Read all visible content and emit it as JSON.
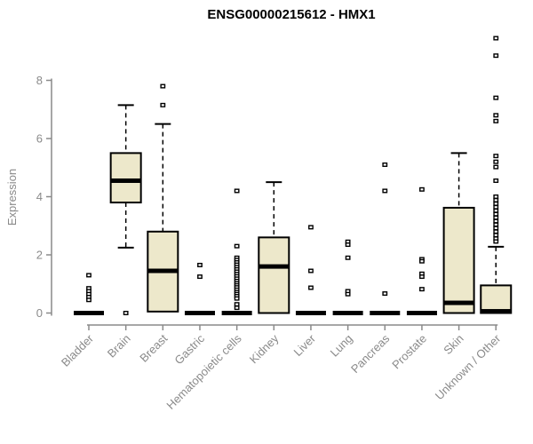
{
  "chart_data": {
    "type": "boxplot",
    "title": "ENSG00000215612 - HMX1",
    "ylabel": "Expression",
    "xlabel": "",
    "ylim": [
      0,
      9.6
    ],
    "yticks": [
      0,
      2,
      4,
      6,
      8
    ],
    "grid": false,
    "legend": "none",
    "box_fill": "#EDE8CB",
    "box_stroke": "#000000",
    "axis_color": "#8a8a8a",
    "categories": [
      "Bladder",
      "Brain",
      "Breast",
      "Gastric",
      "Hematopoietic cells",
      "Kidney",
      "Liver",
      "Lung",
      "Pancreas",
      "Prostate",
      "Skin",
      "Unknown / Other"
    ],
    "boxes": [
      {
        "label": "Bladder",
        "q1": 0,
        "median": 0,
        "q3": 0,
        "whisker_low": 0,
        "whisker_high": 0,
        "outliers": [
          1.3,
          0.85,
          0.75,
          0.65,
          0.55,
          0.45
        ]
      },
      {
        "label": "Brain",
        "q1": 3.8,
        "median": 4.55,
        "q3": 5.5,
        "whisker_low": 2.25,
        "whisker_high": 7.15,
        "outliers": [
          0
        ]
      },
      {
        "label": "Breast",
        "q1": 0.05,
        "median": 1.45,
        "q3": 2.8,
        "whisker_low": 0.05,
        "whisker_high": 6.5,
        "outliers": [
          7.8,
          7.15
        ]
      },
      {
        "label": "Gastric",
        "q1": 0,
        "median": 0,
        "q3": 0,
        "whisker_low": 0,
        "whisker_high": 0,
        "outliers": [
          1.65,
          1.25
        ]
      },
      {
        "label": "Hematopoietic cells",
        "q1": 0,
        "median": 0,
        "q3": 0,
        "whisker_low": 0,
        "whisker_high": 0,
        "outliers": [
          4.2,
          2.3,
          1.9,
          1.82,
          1.74,
          1.66,
          1.58,
          1.5,
          1.42,
          1.34,
          1.26,
          1.18,
          1.1,
          1.02,
          0.95,
          0.88,
          0.8,
          0.72,
          0.65,
          0.58,
          0.5,
          0.3,
          0.18
        ]
      },
      {
        "label": "Kidney",
        "q1": 0,
        "median": 1.6,
        "q3": 2.6,
        "whisker_low": 0,
        "whisker_high": 4.5,
        "outliers": []
      },
      {
        "label": "Liver",
        "q1": 0,
        "median": 0,
        "q3": 0,
        "whisker_low": 0,
        "whisker_high": 0,
        "outliers": [
          2.95,
          1.45,
          0.87
        ]
      },
      {
        "label": "Lung",
        "q1": 0,
        "median": 0,
        "q3": 0,
        "whisker_low": 0,
        "whisker_high": 0,
        "outliers": [
          2.45,
          2.35,
          1.9,
          0.75,
          0.65
        ]
      },
      {
        "label": "Pancreas",
        "q1": 0,
        "median": 0,
        "q3": 0,
        "whisker_low": 0,
        "whisker_high": 0,
        "outliers": [
          5.1,
          4.2,
          0.67
        ]
      },
      {
        "label": "Prostate",
        "q1": 0,
        "median": 0,
        "q3": 0,
        "whisker_low": 0,
        "whisker_high": 0,
        "outliers": [
          4.25,
          1.85,
          1.78,
          1.35,
          1.25,
          0.82
        ]
      },
      {
        "label": "Skin",
        "q1": 0,
        "median": 0.35,
        "q3": 3.62,
        "whisker_low": 0,
        "whisker_high": 5.5,
        "outliers": []
      },
      {
        "label": "Unknown / Other",
        "q1": 0,
        "median": 0.06,
        "q3": 0.95,
        "whisker_low": 0,
        "whisker_high": 2.28,
        "outliers": [
          9.45,
          8.85,
          7.4,
          6.8,
          6.6,
          5.4,
          5.2,
          5.02,
          4.55,
          4.0,
          3.88,
          3.76,
          3.64,
          3.52,
          3.4,
          3.28,
          3.16,
          3.04,
          2.92,
          2.8,
          2.68,
          2.56,
          2.46
        ]
      }
    ]
  }
}
